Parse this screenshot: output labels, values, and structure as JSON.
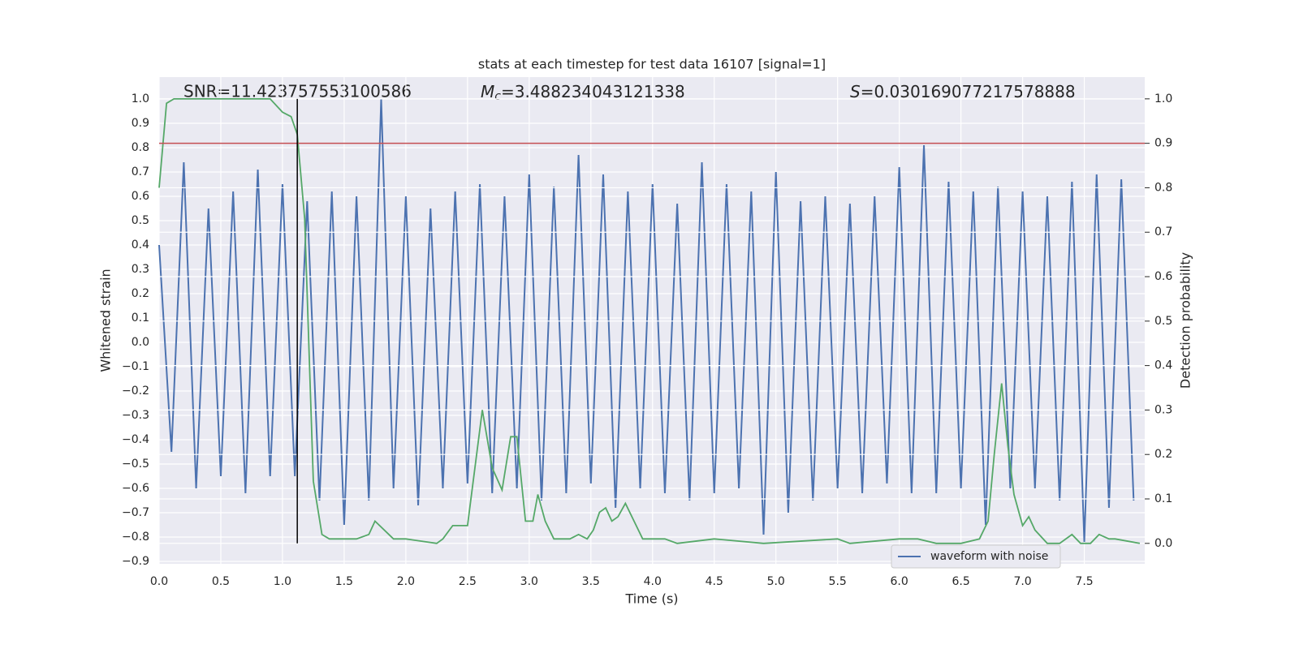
{
  "chart_data": {
    "type": "line",
    "title": "stats at each timestep for test data 16107 [signal=1]",
    "xlabel": "Time (s)",
    "ylabel": "Whitened strain",
    "y2label": "Detection probability",
    "annotations": [
      {
        "text": "SNR=11.423757553100586"
      },
      {
        "symbol": "M",
        "subscript": "c",
        "text": "=3.488234043121338"
      },
      {
        "symbol": "S",
        "text": "=0.030169077217578888"
      }
    ],
    "grid": true,
    "legend": "lower right",
    "xlim": [
      0,
      7.99
    ],
    "ylim": [
      -0.91,
      1.09
    ],
    "y2lim": [
      -0.046,
      1.049
    ],
    "xticks": [
      {
        "value": 0,
        "label": "0.0"
      },
      {
        "value": 0.5,
        "label": "0.5"
      },
      {
        "value": 1,
        "label": "1.0"
      },
      {
        "value": 1.5,
        "label": "1.5"
      },
      {
        "value": 2,
        "label": "2.0"
      },
      {
        "value": 2.5,
        "label": "2.5"
      },
      {
        "value": 3,
        "label": "3.0"
      },
      {
        "value": 3.5,
        "label": "3.5"
      },
      {
        "value": 4,
        "label": "4.0"
      },
      {
        "value": 4.5,
        "label": "4.5"
      },
      {
        "value": 5,
        "label": "5.0"
      },
      {
        "value": 5.5,
        "label": "5.5"
      },
      {
        "value": 6,
        "label": "6.0"
      },
      {
        "value": 6.5,
        "label": "6.5"
      },
      {
        "value": 7,
        "label": "7.0"
      },
      {
        "value": 7.5,
        "label": "7.5"
      }
    ],
    "yticks": [
      {
        "value": -0.9,
        "label": "−0.9"
      },
      {
        "value": -0.8,
        "label": "−0.8"
      },
      {
        "value": -0.7,
        "label": "−0.7"
      },
      {
        "value": -0.6,
        "label": "−0.6"
      },
      {
        "value": -0.5,
        "label": "−0.5"
      },
      {
        "value": -0.4,
        "label": "−0.4"
      },
      {
        "value": -0.3,
        "label": "−0.3"
      },
      {
        "value": -0.2,
        "label": "−0.2"
      },
      {
        "value": -0.1,
        "label": "−0.1"
      },
      {
        "value": 0,
        "label": "0.0"
      },
      {
        "value": 0.1,
        "label": "0.1"
      },
      {
        "value": 0.2,
        "label": "0.2"
      },
      {
        "value": 0.3,
        "label": "0.3"
      },
      {
        "value": 0.4,
        "label": "0.4"
      },
      {
        "value": 0.5,
        "label": "0.5"
      },
      {
        "value": 0.6,
        "label": "0.6"
      },
      {
        "value": 0.7,
        "label": "0.7"
      },
      {
        "value": 0.8,
        "label": "0.8"
      },
      {
        "value": 0.9,
        "label": "0.9"
      },
      {
        "value": 1,
        "label": "1.0"
      }
    ],
    "y2ticks": [
      {
        "value": 0,
        "label": "0.0"
      },
      {
        "value": 0.1,
        "label": "0.1"
      },
      {
        "value": 0.2,
        "label": "0.2"
      },
      {
        "value": 0.3,
        "label": "0.3"
      },
      {
        "value": 0.4,
        "label": "0.4"
      },
      {
        "value": 0.5,
        "label": "0.5"
      },
      {
        "value": 0.6,
        "label": "0.6"
      },
      {
        "value": 0.7,
        "label": "0.7"
      },
      {
        "value": 0.8,
        "label": "0.8"
      },
      {
        "value": 0.9,
        "label": "0.9"
      },
      {
        "value": 1,
        "label": "1.0"
      }
    ],
    "threshold": {
      "value": 0.9,
      "color": "#c44e52"
    },
    "marker": {
      "x": 1.12,
      "color": "#000000"
    },
    "series": [
      {
        "name": "waveform with noise",
        "color": "#4c72b0",
        "x": [
          0,
          0.1,
          0.2,
          0.3,
          0.4,
          0.5,
          0.6,
          0.7,
          0.8,
          0.9,
          1,
          1.1,
          1.2,
          1.3,
          1.4,
          1.5,
          1.6,
          1.7,
          1.8,
          1.9,
          2,
          2.1,
          2.2,
          2.3,
          2.4,
          2.5,
          2.6,
          2.7,
          2.8,
          2.9,
          3,
          3.1,
          3.2,
          3.3,
          3.4,
          3.5,
          3.6,
          3.7,
          3.8,
          3.9,
          4,
          4.1,
          4.2,
          4.3,
          4.4,
          4.5,
          4.6,
          4.7,
          4.8,
          4.9,
          5,
          5.1,
          5.2,
          5.3,
          5.4,
          5.5,
          5.6,
          5.7,
          5.8,
          5.9,
          6,
          6.1,
          6.2,
          6.3,
          6.4,
          6.5,
          6.6,
          6.7,
          6.8,
          6.9,
          7,
          7.1,
          7.2,
          7.3,
          7.4,
          7.5,
          7.6,
          7.7,
          7.8,
          7.9
        ],
        "values": [
          0.4,
          -0.45,
          0.74,
          -0.6,
          0.55,
          -0.55,
          0.62,
          -0.62,
          0.71,
          -0.55,
          0.65,
          -0.55,
          0.58,
          -0.65,
          0.62,
          -0.75,
          0.6,
          -0.65,
          1.0,
          -0.6,
          0.6,
          -0.67,
          0.55,
          -0.6,
          0.62,
          -0.58,
          0.65,
          -0.62,
          0.6,
          -0.6,
          0.69,
          -0.65,
          0.64,
          -0.62,
          0.77,
          -0.58,
          0.69,
          -0.68,
          0.62,
          -0.6,
          0.65,
          -0.62,
          0.57,
          -0.65,
          0.74,
          -0.62,
          0.65,
          -0.6,
          0.62,
          -0.79,
          0.7,
          -0.7,
          0.58,
          -0.65,
          0.6,
          -0.6,
          0.57,
          -0.62,
          0.6,
          -0.58,
          0.72,
          -0.62,
          0.81,
          -0.62,
          0.66,
          -0.6,
          0.62,
          -0.75,
          0.64,
          -0.6,
          0.62,
          -0.6,
          0.6,
          -0.65,
          0.66,
          -0.82,
          0.69,
          -0.68,
          0.67,
          -0.65
        ]
      },
      {
        "color": "#55a868",
        "axis": "y2",
        "x": [
          0,
          0.06,
          0.12,
          0.6,
          0.9,
          1,
          1.07,
          1.12,
          1.18,
          1.25,
          1.32,
          1.38,
          1.45,
          1.6,
          1.7,
          1.75,
          1.9,
          2,
          2.25,
          2.3,
          2.38,
          2.45,
          2.5,
          2.62,
          2.7,
          2.78,
          2.85,
          2.9,
          2.97,
          3.03,
          3.07,
          3.13,
          3.2,
          3.27,
          3.33,
          3.4,
          3.47,
          3.52,
          3.57,
          3.62,
          3.67,
          3.72,
          3.78,
          3.85,
          3.92,
          4,
          4.1,
          4.2,
          4.5,
          4.9,
          5.5,
          5.6,
          6,
          6.15,
          6.3,
          6.5,
          6.65,
          6.72,
          6.77,
          6.83,
          6.88,
          6.93,
          7,
          7.05,
          7.1,
          7.2,
          7.3,
          7.4,
          7.47,
          7.55,
          7.62,
          7.7,
          7.75,
          7.95
        ],
        "values": [
          0.8,
          0.99,
          1.0,
          1.0,
          1.0,
          0.97,
          0.96,
          0.92,
          0.73,
          0.14,
          0.02,
          0.01,
          0.01,
          0.01,
          0.02,
          0.05,
          0.01,
          0.01,
          0.0,
          0.01,
          0.04,
          0.04,
          0.04,
          0.3,
          0.17,
          0.12,
          0.24,
          0.24,
          0.05,
          0.05,
          0.11,
          0.05,
          0.01,
          0.01,
          0.01,
          0.02,
          0.01,
          0.03,
          0.07,
          0.08,
          0.05,
          0.06,
          0.09,
          0.05,
          0.01,
          0.01,
          0.01,
          0.0,
          0.01,
          0.0,
          0.01,
          0.0,
          0.01,
          0.01,
          0.0,
          0.0,
          0.01,
          0.05,
          0.2,
          0.36,
          0.22,
          0.11,
          0.04,
          0.06,
          0.03,
          0.0,
          0.0,
          0.02,
          0.0,
          0.0,
          0.02,
          0.01,
          0.01,
          0.0
        ]
      }
    ]
  }
}
